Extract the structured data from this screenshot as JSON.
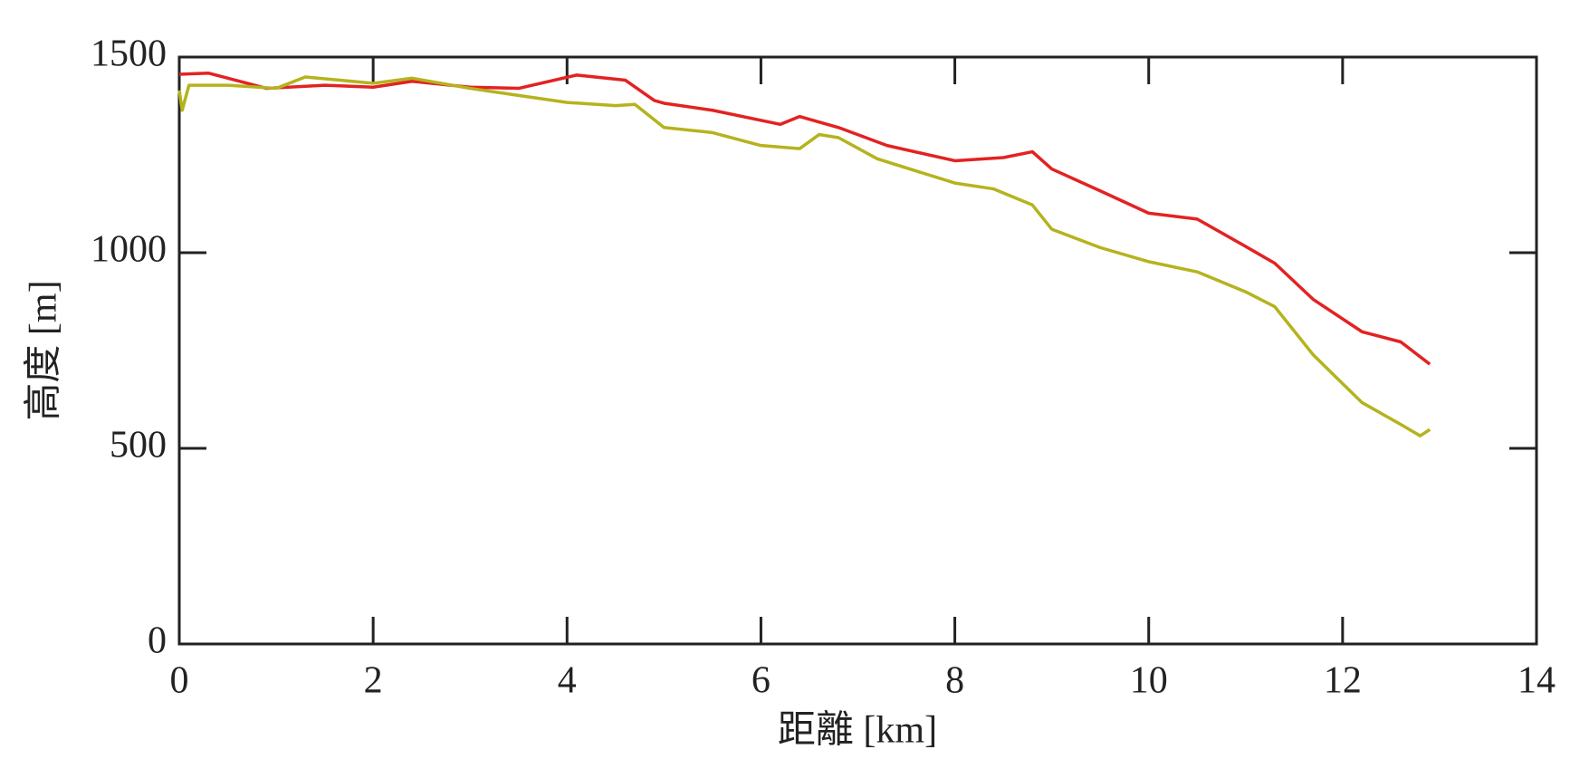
{
  "chart_data": {
    "type": "line",
    "xlabel": "距離 [km]",
    "ylabel": "高度 [m]",
    "xlim": [
      0,
      14
    ],
    "xticks": [
      0,
      2,
      4,
      6,
      8,
      10,
      12,
      14
    ],
    "ylim": [
      0,
      1500
    ],
    "yticks": [
      0,
      500,
      1000,
      1500
    ],
    "grid": false,
    "series": [
      {
        "color": "#e32222",
        "x": [
          0,
          0.3,
          0.9,
          1.5,
          2.0,
          2.4,
          3.0,
          3.5,
          4.1,
          4.6,
          4.9,
          5.0,
          5.5,
          6.2,
          6.4,
          6.8,
          7.3,
          8.0,
          8.5,
          8.8,
          9.0,
          9.5,
          10.0,
          10.5,
          11.0,
          11.3,
          11.7,
          12.2,
          12.6,
          12.9
        ],
        "values": [
          1456,
          1459,
          1420,
          1428,
          1423,
          1438,
          1423,
          1420,
          1454,
          1441,
          1389,
          1382,
          1364,
          1328,
          1348,
          1320,
          1274,
          1235,
          1243,
          1258,
          1214,
          1158,
          1101,
          1086,
          1016,
          973,
          880,
          798,
          772,
          715
        ]
      },
      {
        "color": "#b5b31e",
        "x": [
          0,
          0.03,
          0.1,
          0.5,
          1.0,
          1.3,
          2.0,
          2.4,
          3.0,
          3.5,
          4.0,
          4.5,
          4.7,
          5.0,
          5.5,
          6.0,
          6.4,
          6.6,
          6.8,
          7.2,
          8.0,
          8.4,
          8.8,
          9.0,
          9.5,
          10.0,
          10.5,
          11.0,
          11.3,
          11.7,
          12.2,
          12.6,
          12.8,
          12.9
        ],
        "values": [
          1415,
          1364,
          1428,
          1428,
          1420,
          1449,
          1433,
          1446,
          1420,
          1402,
          1384,
          1376,
          1379,
          1320,
          1307,
          1274,
          1266,
          1302,
          1294,
          1240,
          1178,
          1163,
          1122,
          1060,
          1013,
          977,
          951,
          900,
          862,
          738,
          617,
          561,
          532,
          548
        ]
      }
    ]
  }
}
